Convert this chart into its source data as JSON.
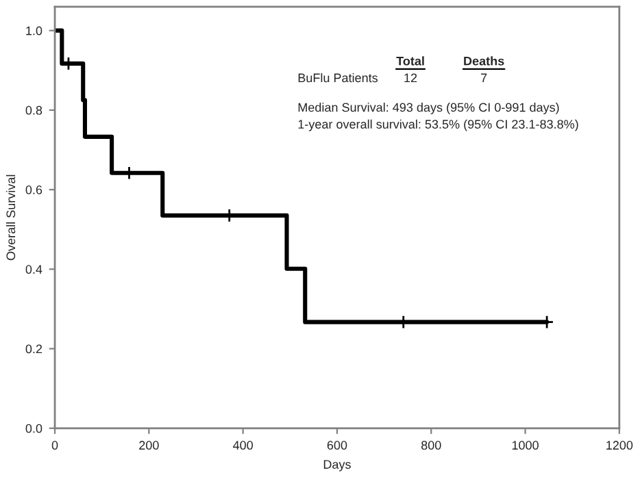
{
  "chart_data": {
    "type": "step",
    "xlabel": "Days",
    "ylabel": "Overall Survival",
    "series": [
      {
        "color": "#000000",
        "x": [
          0,
          15,
          60,
          64,
          121,
          229,
          493,
          532,
          1046
        ],
        "values": [
          1.0,
          0.917,
          0.825,
          0.733,
          0.642,
          0.535,
          0.401,
          0.267,
          0.267
        ]
      },
      {
        "type": "scatter",
        "color": "#000000",
        "marker": "cross",
        "x": [
          29,
          158,
          371,
          741,
          1046
        ],
        "values": [
          0.917,
          0.642,
          0.535,
          0.267,
          0.267
        ]
      }
    ],
    "annotations": [
      "Total",
      "Deaths",
      "BuFlu Patients",
      "12",
      "7",
      "Median Survival: 493 days (95% CI 0-991 days)",
      "1-year overall survival: 53.5% (95% CI 23.1-83.8%)"
    ],
    "xlim": [
      0,
      1200
    ],
    "xticks": [
      0,
      200,
      400,
      600,
      800,
      1000,
      1200
    ],
    "ylim": [
      0,
      1.06
    ],
    "yticks": [
      {
        "value": 0,
        "label": "0.0"
      },
      {
        "value": 0.2,
        "label": "0.2"
      },
      {
        "value": 0.4,
        "label": "0.4"
      },
      {
        "value": 0.6,
        "label": "0.6"
      },
      {
        "value": 0.8,
        "label": "0.8"
      },
      {
        "value": 1.0,
        "label": "1.0"
      }
    ],
    "grid": false,
    "legend": false
  }
}
